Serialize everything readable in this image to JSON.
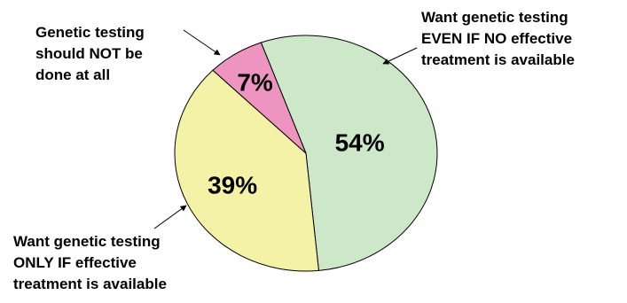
{
  "chart_data": {
    "type": "pie",
    "title": "",
    "slices": [
      {
        "label_lines": [
          "Want genetic testing",
          "EVEN IF NO effective",
          "treatment is available"
        ],
        "value": 54,
        "display": "54%",
        "color": "#cde8c8"
      },
      {
        "label_lines": [
          "Want genetic testing",
          "ONLY IF effective",
          "treatment is available"
        ],
        "value": 39,
        "display": "39%",
        "color": "#f4f2a6"
      },
      {
        "label_lines": [
          "Genetic testing",
          "should NOT be",
          "done at all"
        ],
        "value": 7,
        "display": "7%",
        "color": "#ed95c0"
      }
    ]
  }
}
